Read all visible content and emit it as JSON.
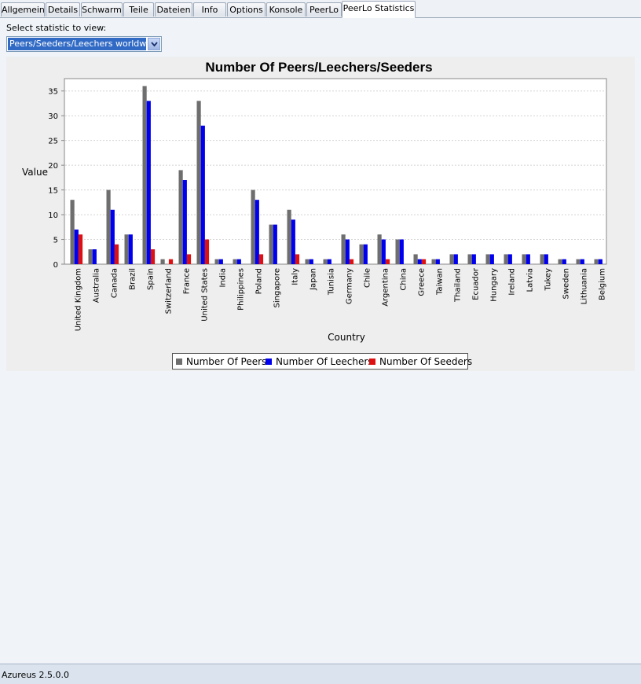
{
  "tabs": [
    {
      "label": "Allgemein",
      "active": false
    },
    {
      "label": "Details",
      "active": false
    },
    {
      "label": "Schwarm",
      "active": false
    },
    {
      "label": "Teile",
      "active": false
    },
    {
      "label": "Dateien",
      "active": false
    },
    {
      "label": "Info",
      "active": false
    },
    {
      "label": "Options",
      "active": false
    },
    {
      "label": "Konsole",
      "active": false
    },
    {
      "label": "PeerLo",
      "active": false
    },
    {
      "label": "PeerLo Statistics",
      "active": true
    }
  ],
  "selector": {
    "label": "Select statistic to view:",
    "value": "Peers/Seeders/Leechers worldwide"
  },
  "chart_data": {
    "type": "bar",
    "title": "Number Of Peers/Leechers/Seeders",
    "xlabel": "Country",
    "ylabel": "Value",
    "ylim": [
      0,
      37.5
    ],
    "yticks": [
      0,
      5,
      10,
      15,
      20,
      25,
      30,
      35
    ],
    "grid": true,
    "legend_position": "bottom",
    "categories": [
      "United Kingdom",
      "Australia",
      "Canada",
      "Brazil",
      "Spain",
      "Switzerland",
      "France",
      "United States",
      "India",
      "Philippines",
      "Poland",
      "Singapore",
      "Italy",
      "Japan",
      "Tunisia",
      "Germany",
      "Chile",
      "Argentina",
      "China",
      "Greece",
      "Taiwan",
      "Thailand",
      "Ecuador",
      "Hungary",
      "Ireland",
      "Latvia",
      "Tukey",
      "Sweden",
      "Lithuania",
      "Belgium"
    ],
    "series": [
      {
        "name": "Number Of Peers",
        "color": "#6e6e6e",
        "values": [
          13,
          3,
          15,
          6,
          36,
          1,
          19,
          33,
          1,
          1,
          15,
          8,
          11,
          1,
          1,
          6,
          4,
          6,
          5,
          2,
          1,
          2,
          2,
          2,
          2,
          2,
          2,
          1,
          1,
          1
        ]
      },
      {
        "name": "Number Of Leechers",
        "color": "#0000ee",
        "values": [
          7,
          3,
          11,
          6,
          33,
          0,
          17,
          28,
          1,
          1,
          13,
          8,
          9,
          1,
          1,
          5,
          4,
          5,
          5,
          1,
          1,
          2,
          2,
          2,
          2,
          2,
          2,
          1,
          1,
          1
        ]
      },
      {
        "name": "Number Of Seeders",
        "color": "#dd1111",
        "values": [
          6,
          0,
          4,
          0,
          3,
          1,
          2,
          5,
          0,
          0,
          2,
          0,
          2,
          0,
          0,
          1,
          0,
          1,
          0,
          1,
          0,
          0,
          0,
          0,
          0,
          0,
          0,
          0,
          0,
          0
        ]
      }
    ]
  },
  "statusbar": {
    "text": "Azureus 2.5.0.0"
  }
}
